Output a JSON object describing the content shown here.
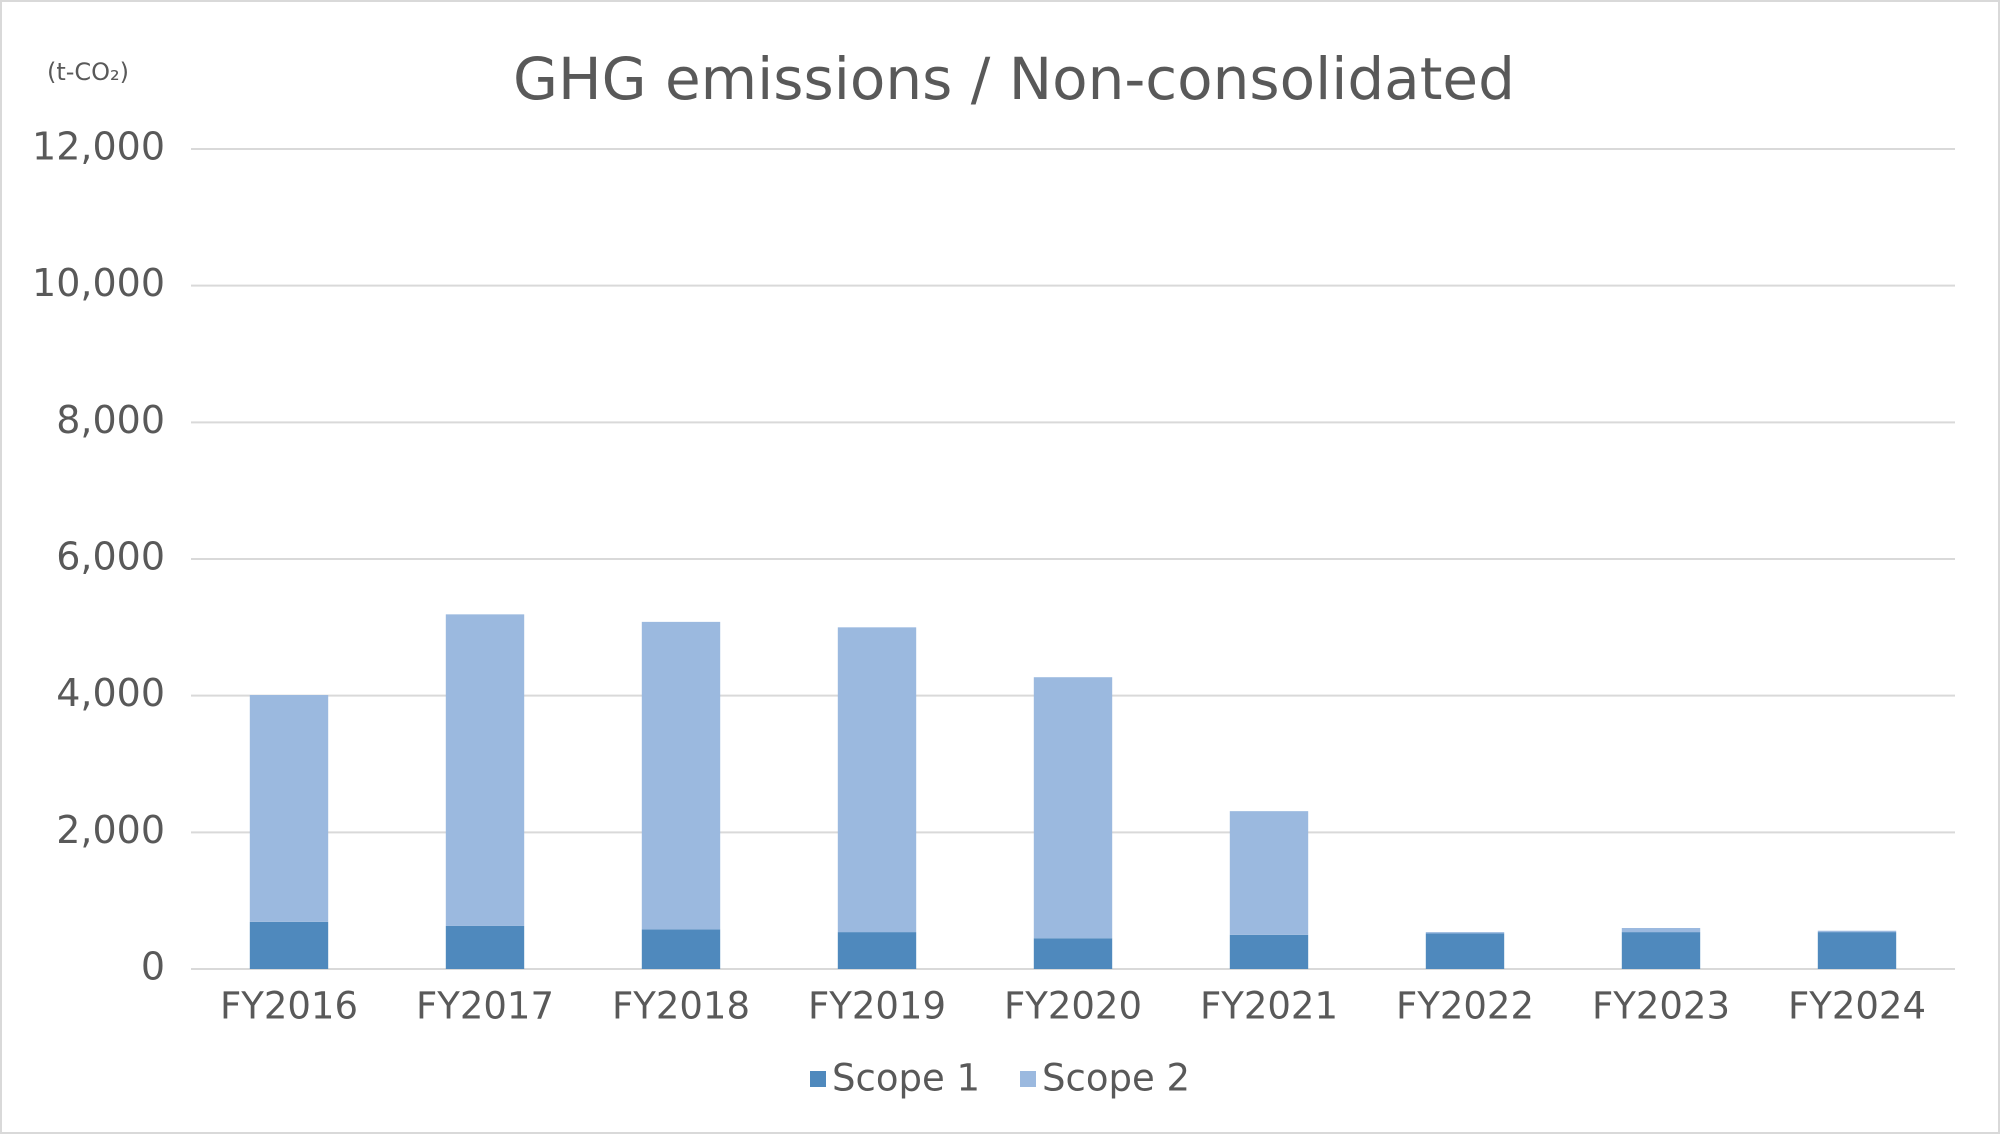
{
  "chart_data": {
    "type": "bar",
    "stacked": true,
    "title": "GHG emissions / Non-consolidated",
    "unit_label": "(t-CO₂)",
    "categories": [
      "FY2016",
      "FY2017",
      "FY2018",
      "FY2019",
      "FY2020",
      "FY2021",
      "FY2022",
      "FY2023",
      "FY2024"
    ],
    "series": [
      {
        "name": "Scope 1",
        "color": "#4f89bd",
        "values": [
          690,
          630,
          580,
          540,
          450,
          500,
          520,
          540,
          540
        ]
      },
      {
        "name": "Scope 2",
        "color": "#9bb9df",
        "values": [
          3320,
          4560,
          4500,
          4460,
          3820,
          1810,
          20,
          60,
          20
        ]
      }
    ],
    "ylim": [
      0,
      12000
    ],
    "yticks": [
      0,
      {
        "value": 2000,
        "label": "2,000"
      },
      {
        "value": 4000,
        "label": "4,000"
      },
      {
        "value": 6000,
        "label": "6,000"
      },
      {
        "value": 8000,
        "label": "8,000"
      },
      {
        "value": 10000,
        "label": "10,000"
      },
      {
        "value": 12000,
        "label": "12,000"
      }
    ],
    "grid": true,
    "legend": "bottom"
  }
}
